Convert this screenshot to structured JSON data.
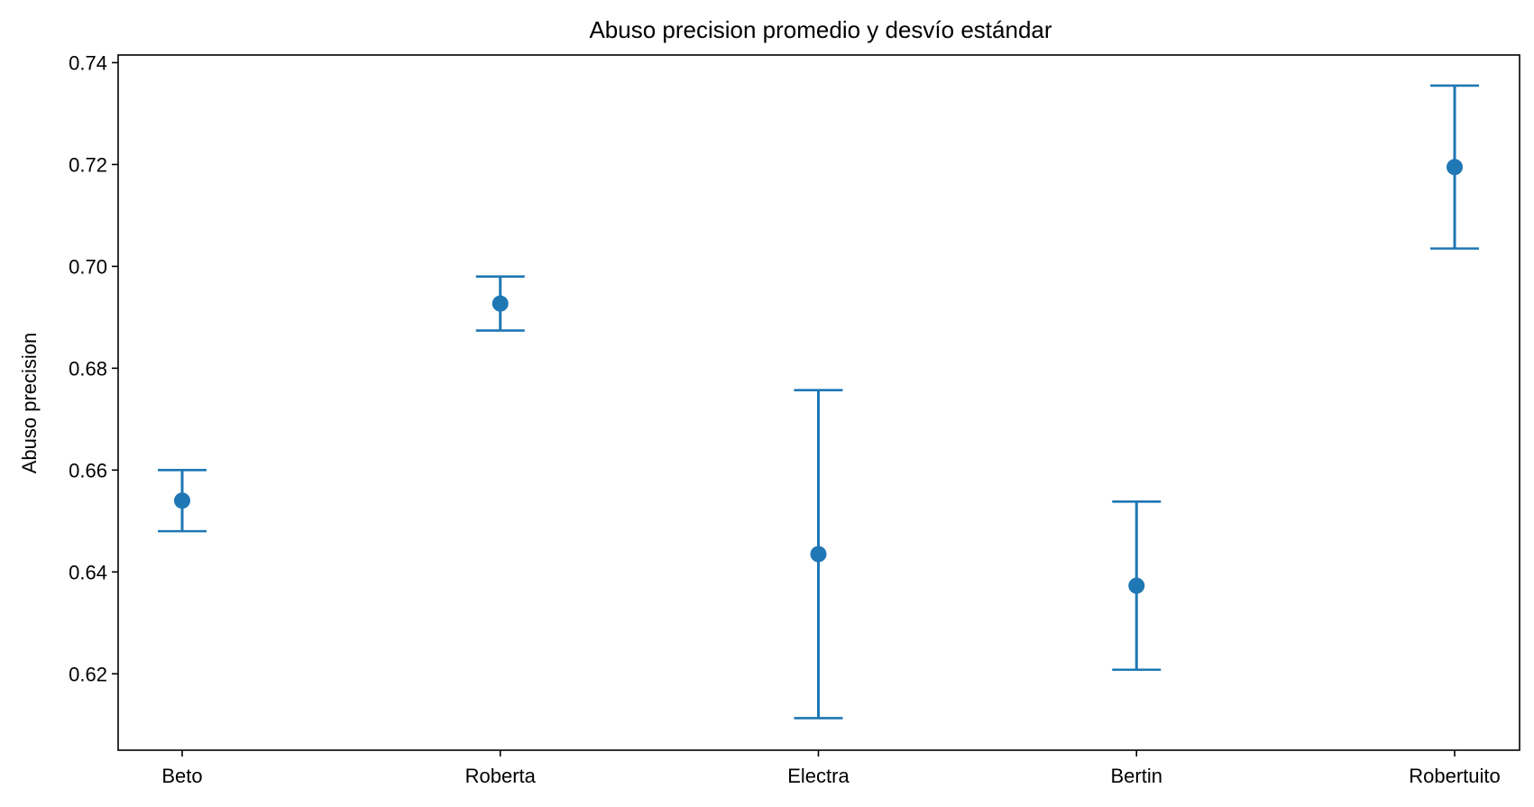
{
  "chart_data": {
    "type": "scatter",
    "title": "Abuso precision promedio y desvío estándar",
    "xlabel": "",
    "ylabel": "Abuso precision",
    "categories": [
      "Beto",
      "Roberta",
      "Electra",
      "Bertin",
      "Robertuito"
    ],
    "means": [
      0.654,
      0.6927,
      0.6435,
      0.6373,
      0.7195
    ],
    "std": [
      0.006,
      0.0053,
      0.0322,
      0.0165,
      0.016
    ],
    "ylim": [
      0.605,
      0.7415
    ],
    "yticks": [
      0.62,
      0.64,
      0.66,
      0.68,
      0.7,
      0.72,
      0.74
    ],
    "ytick_labels": [
      "0.62",
      "0.64",
      "0.66",
      "0.68",
      "0.70",
      "0.72",
      "0.74"
    ],
    "grid": false,
    "colors": {
      "series": "#1f77b4",
      "axis": "#000000"
    }
  }
}
